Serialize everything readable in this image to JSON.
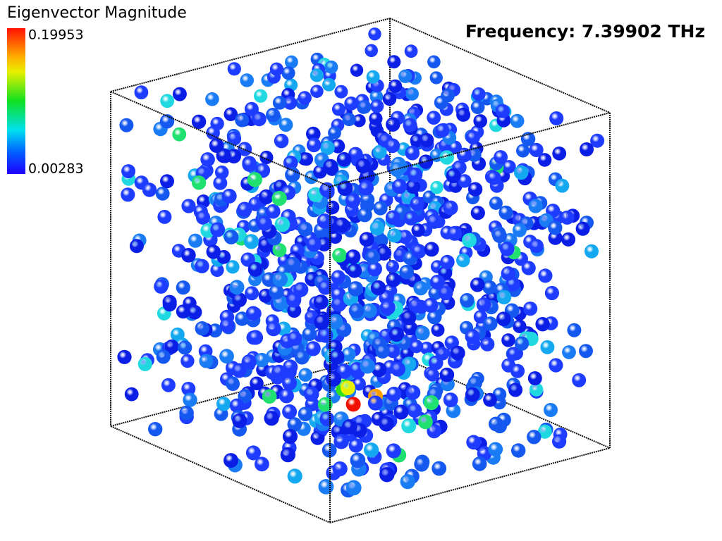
{
  "colorbar": {
    "title": "Eigenvector Magnitude",
    "max_label": "0.19953",
    "min_label": "0.00283"
  },
  "frequency_label": "Frequency: 7.39902 THz"
}
